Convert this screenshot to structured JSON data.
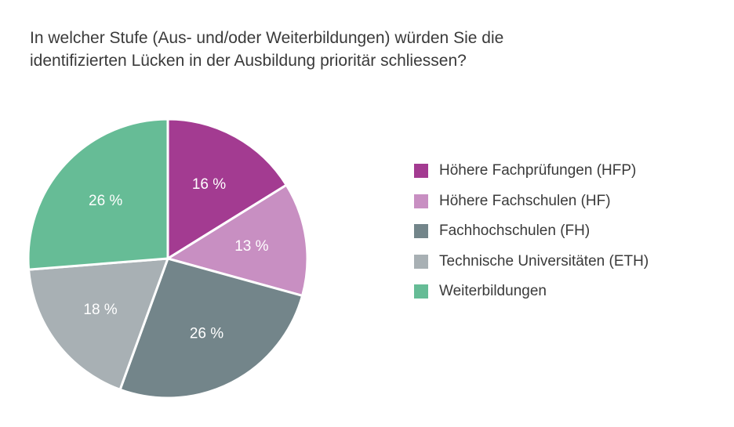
{
  "chart_data": {
    "type": "pie",
    "title_lines": [
      "In welcher Stufe (Aus- und/oder Weiterbildungen) würden Sie die",
      "identifizierten Lücken in der Ausbildung prioritär schliessen?"
    ],
    "slices": [
      {
        "name": "Höhere Fachprüfungen (HFP)",
        "value": 16,
        "label": "16 %",
        "color": "#a33b91"
      },
      {
        "name": "Höhere Fachschulen (HF)",
        "value": 13,
        "label": "13 %",
        "color": "#c88fc2"
      },
      {
        "name": "Fachhochschulen (FH)",
        "value": 26,
        "label": "26 %",
        "color": "#73858a"
      },
      {
        "name": "Technische Universitäten (ETH)",
        "value": 18,
        "label": "18 %",
        "color": "#a8b0b4"
      },
      {
        "name": "Weiterbildungen",
        "value": 26,
        "label": "26 %",
        "color": "#66bc96"
      }
    ],
    "legend_position": "right",
    "start_angle": "12 o'clock",
    "direction": "clockwise"
  }
}
